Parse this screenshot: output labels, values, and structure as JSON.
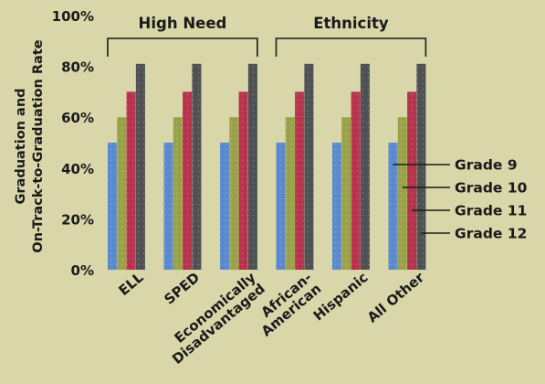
{
  "chart_data": {
    "type": "bar",
    "title": "",
    "ylabel_lines": [
      "Graduation and",
      "On-Track-to-Graduation Rate"
    ],
    "xlabel": "",
    "ylim": [
      0,
      100
    ],
    "yticks": [
      0,
      20,
      40,
      60,
      80,
      100
    ],
    "ytick_labels": [
      "0%",
      "20%",
      "40%",
      "60%",
      "80%",
      "100%"
    ],
    "categories": [
      [
        "ELL"
      ],
      [
        "SPED"
      ],
      [
        "Economically",
        "Disadvantaged"
      ],
      [
        "African-",
        "American"
      ],
      [
        "Hispanic"
      ],
      [
        "All Other"
      ]
    ],
    "groups": [
      {
        "label": "High Need",
        "from": 0,
        "to": 2
      },
      {
        "label": "Ethnicity",
        "from": 3,
        "to": 5
      }
    ],
    "series": [
      {
        "name": "Grade 9",
        "color": "#5b8ad0",
        "values": [
          50,
          50,
          50,
          50,
          50,
          50
        ]
      },
      {
        "name": "Grade 10",
        "color": "#9aa24a",
        "values": [
          60,
          60,
          60,
          60,
          60,
          60
        ]
      },
      {
        "name": "Grade 11",
        "color": "#b8334e",
        "values": [
          70,
          70,
          70,
          70,
          70,
          70
        ]
      },
      {
        "name": "Grade 12",
        "color": "#4f5154",
        "values": [
          81,
          81,
          81,
          81,
          81,
          81
        ]
      }
    ],
    "legend_placement": "right, inside last group",
    "grid": false
  }
}
